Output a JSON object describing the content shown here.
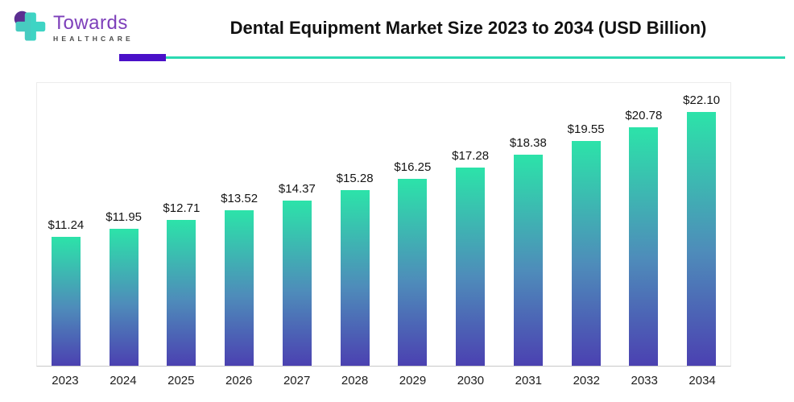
{
  "logo": {
    "brand_name": "Towards",
    "brand_subtitle": "HEALTHCARE",
    "brand_text_color": "#7d3fba",
    "icon_teal": "#3ed4c4",
    "icon_purple": "#5b2e91"
  },
  "header": {
    "title": "Dental Equipment Market Size 2023 to 2034 (USD Billion)"
  },
  "divider": {
    "purple_color": "#4a10c8",
    "teal_color": "#2bd9b2"
  },
  "chart_data": {
    "type": "bar",
    "title": "Dental Equipment Market Size 2023 to 2034 (USD Billion)",
    "categories": [
      "2023",
      "2024",
      "2025",
      "2026",
      "2027",
      "2028",
      "2029",
      "2030",
      "2031",
      "2032",
      "2033",
      "2034"
    ],
    "values": [
      11.24,
      11.95,
      12.71,
      13.52,
      14.37,
      15.28,
      16.25,
      17.28,
      18.38,
      19.55,
      20.78,
      22.1
    ],
    "labels": [
      "$11.24",
      "$11.95",
      "$12.71",
      "$13.52",
      "$14.37",
      "$15.28",
      "$16.25",
      "$17.28",
      "$18.38",
      "$19.55",
      "$20.78",
      "$22.10"
    ],
    "xlabel": "",
    "ylabel": "",
    "unit": "USD Billion",
    "ylim": [
      0,
      22.1
    ],
    "grid": false,
    "legend": "none",
    "bar_gradient_top": "#2ce3a9",
    "bar_gradient_mid": "#4e8cba",
    "bar_gradient_bottom": "#4b41b1"
  }
}
